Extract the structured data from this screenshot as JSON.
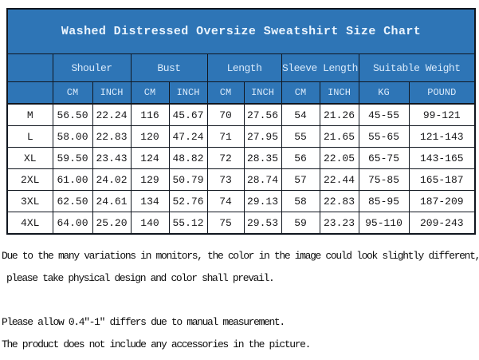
{
  "title": "Washed Distressed Oversize Sweatshirt Size Chart",
  "colors": {
    "header_blue": "#2e75b6",
    "border_dark": "#10161f",
    "header_text": "#d9eafb",
    "data_text": "#18181a"
  },
  "table": {
    "groups": [
      {
        "label": "Shouler"
      },
      {
        "label": "Bust"
      },
      {
        "label": "Length"
      },
      {
        "label": "Sleeve Length"
      },
      {
        "label": "Suitable Weight"
      }
    ],
    "subheaders": [
      "CM",
      "INCH",
      "CM",
      "INCH",
      "CM",
      "INCH",
      "CM",
      "INCH",
      "KG",
      "POUND"
    ],
    "rows": [
      {
        "size": "M",
        "values": [
          "56.50",
          "22.24",
          "116",
          "45.67",
          "70",
          "27.56",
          "54",
          "21.26",
          "45-55",
          "99-121"
        ]
      },
      {
        "size": "L",
        "values": [
          "58.00",
          "22.83",
          "120",
          "47.24",
          "71",
          "27.95",
          "55",
          "21.65",
          "55-65",
          "121-143"
        ]
      },
      {
        "size": "XL",
        "values": [
          "59.50",
          "23.43",
          "124",
          "48.82",
          "72",
          "28.35",
          "56",
          "22.05",
          "65-75",
          "143-165"
        ]
      },
      {
        "size": "2XL",
        "values": [
          "61.00",
          "24.02",
          "129",
          "50.79",
          "73",
          "28.74",
          "57",
          "22.44",
          "75-85",
          "165-187"
        ]
      },
      {
        "size": "3XL",
        "values": [
          "62.50",
          "24.61",
          "134",
          "52.76",
          "74",
          "29.13",
          "58",
          "22.83",
          "85-95",
          "187-209"
        ]
      },
      {
        "size": "4XL",
        "values": [
          "64.00",
          "25.20",
          "140",
          "55.12",
          "75",
          "29.53",
          "59",
          "23.23",
          "95-110",
          "209-243"
        ]
      }
    ]
  },
  "notes": [
    "Due to the many variations in monitors, the color in the image could look slightly different,",
    " please take physical design and color shall prevail.",
    "Please allow 0.4\"-1\" differs due to manual measurement.",
    "The product does not include any accessories in the picture."
  ]
}
